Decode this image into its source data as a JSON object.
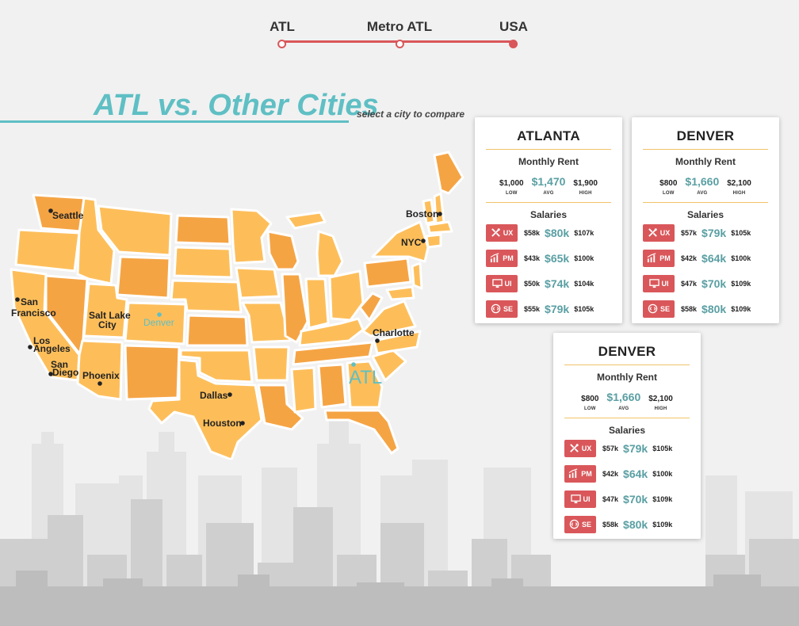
{
  "nav": {
    "items": [
      {
        "label": "ATL",
        "active": false
      },
      {
        "label": "Metro ATL",
        "active": false
      },
      {
        "label": "USA",
        "active": true
      }
    ]
  },
  "header": {
    "title": "ATL vs. Other Cities",
    "subtitle": "select a city to compare"
  },
  "map": {
    "cities": {
      "seattle": "Seattle",
      "boston": "Boston",
      "nyc": "NYC",
      "san_francisco_1": "San",
      "san_francisco_2": "Francisco",
      "salt_lake_1": "Salt Lake",
      "salt_lake_2": "City",
      "denver": "Denver",
      "los_angeles_1": "Los",
      "los_angeles_2": "Angeles",
      "san_diego_1": "San",
      "san_diego_2": "Diego",
      "phoenix": "Phoenix",
      "charlotte": "Charlotte",
      "atl": "ATL",
      "dallas": "Dallas",
      "houston": "Houston"
    },
    "colors": {
      "state_light": "#fdbe5a",
      "state_dark": "#f5a444",
      "border": "#ffffff",
      "accent": "#5fbfc4"
    }
  },
  "labels": {
    "monthly_rent": "Monthly Rent",
    "salaries": "Salaries",
    "low": "LOW",
    "avg": "AVG",
    "high": "HIGH"
  },
  "cards": [
    {
      "city": "ATLANTA",
      "rent": {
        "low": "$1,000",
        "avg": "$1,470",
        "high": "$1,900"
      },
      "salaries": [
        {
          "role": "UX",
          "icon": "ux-tools-icon",
          "low": "$58k",
          "avg": "$80k",
          "high": "$107k"
        },
        {
          "role": "PM",
          "icon": "pm-chart-icon",
          "low": "$43k",
          "avg": "$65k",
          "high": "$100k"
        },
        {
          "role": "UI",
          "icon": "ui-monitor-icon",
          "low": "$50k",
          "avg": "$74k",
          "high": "$104k"
        },
        {
          "role": "SE",
          "icon": "se-code-icon",
          "low": "$55k",
          "avg": "$79k",
          "high": "$105k"
        }
      ]
    },
    {
      "city": "DENVER",
      "rent": {
        "low": "$800",
        "avg": "$1,660",
        "high": "$2,100"
      },
      "salaries": [
        {
          "role": "UX",
          "icon": "ux-tools-icon",
          "low": "$57k",
          "avg": "$79k",
          "high": "$105k"
        },
        {
          "role": "PM",
          "icon": "pm-chart-icon",
          "low": "$42k",
          "avg": "$64k",
          "high": "$100k"
        },
        {
          "role": "UI",
          "icon": "ui-monitor-icon",
          "low": "$47k",
          "avg": "$70k",
          "high": "$109k"
        },
        {
          "role": "SE",
          "icon": "se-code-icon",
          "low": "$58k",
          "avg": "$80k",
          "high": "$109k"
        }
      ]
    },
    {
      "city": "DENVER",
      "rent": {
        "low": "$800",
        "avg": "$1,660",
        "high": "$2,100"
      },
      "salaries": [
        {
          "role": "UX",
          "icon": "ux-tools-icon",
          "low": "$57k",
          "avg": "$79k",
          "high": "$105k"
        },
        {
          "role": "PM",
          "icon": "pm-chart-icon",
          "low": "$42k",
          "avg": "$64k",
          "high": "$100k"
        },
        {
          "role": "UI",
          "icon": "ui-monitor-icon",
          "low": "$47k",
          "avg": "$70k",
          "high": "$109k"
        },
        {
          "role": "SE",
          "icon": "se-code-icon",
          "low": "$58k",
          "avg": "$80k",
          "high": "$109k"
        }
      ]
    }
  ],
  "colors": {
    "accent_red": "#d9575a",
    "accent_teal": "#5fbfc4",
    "avg_teal": "#5a9fa3",
    "separator": "#f1c36a",
    "background": "#f1f1f1"
  }
}
